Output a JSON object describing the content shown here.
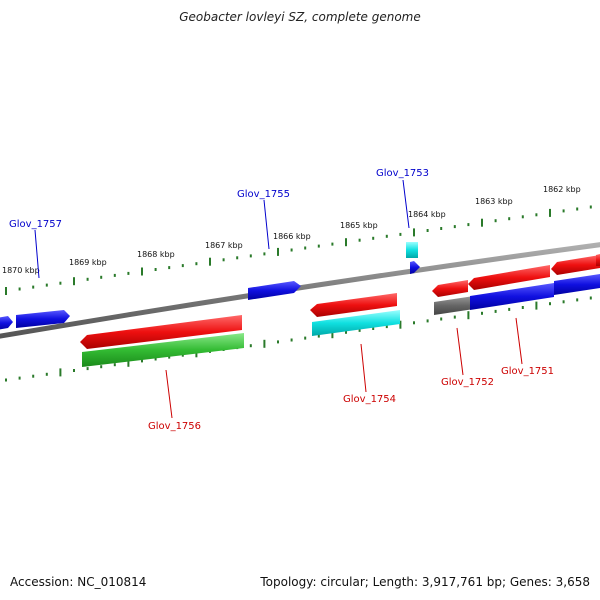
{
  "title": "Geobacter lovleyi SZ, complete genome",
  "footer": {
    "accession": "Accession: NC_010814",
    "summary": "Topology: circular; Length: 3,917,761 bp; Genes: 3,658"
  },
  "kbp_ticks": [
    "1870 kbp",
    "1869 kbp",
    "1868 kbp",
    "1867 kbp",
    "1866 kbp",
    "1865 kbp",
    "1864 kbp",
    "1863 kbp",
    "1862 kbp"
  ],
  "genes_labeled": [
    {
      "name": "Glov_1757",
      "strand": "forward"
    },
    {
      "name": "Glov_1755",
      "strand": "forward"
    },
    {
      "name": "Glov_1753",
      "strand": "forward"
    },
    {
      "name": "Glov_1756",
      "strand": "reverse"
    },
    {
      "name": "Glov_1754",
      "strand": "reverse"
    },
    {
      "name": "Glov_1752",
      "strand": "reverse"
    },
    {
      "name": "Glov_1751",
      "strand": "reverse"
    }
  ],
  "colors": {
    "forward_label": "#0000cc",
    "reverse_label": "#cc0000",
    "blue_gene": "#1010e0",
    "red_gene": "#e01010",
    "green_gene": "#33bb33",
    "cyan_gene": "#10e0e0",
    "gray_gene": "#6a6a6a",
    "backbone": "#808080",
    "tick": "#2a7a2a"
  }
}
